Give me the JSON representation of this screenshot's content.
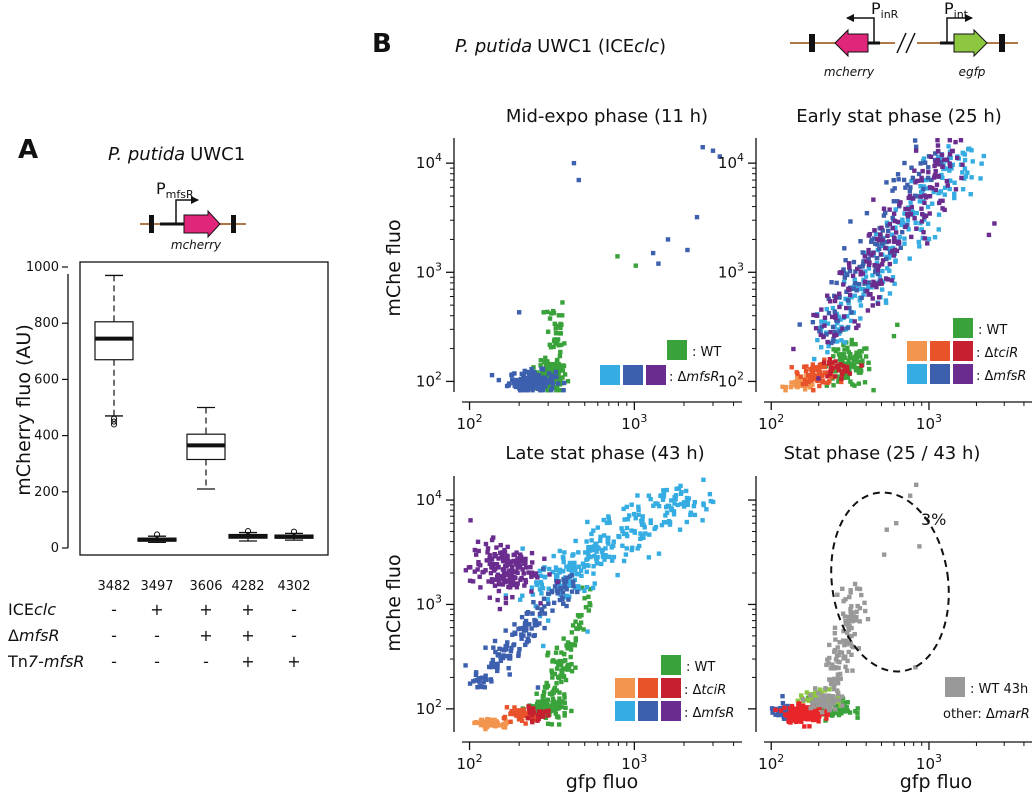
{
  "panel_a": {
    "letter": "A",
    "title_italic": "P. putida",
    "title_rest": "UWC1",
    "promoter_base": "P",
    "promoter_sub": "mfsR",
    "gene": "mcherry",
    "ylabel": "mCherry fluo (AU)",
    "strain_row_labels": [
      {
        "name": "ICE",
        "italic": "clc"
      },
      {
        "name": "Δ",
        "italic": "mfsR"
      },
      {
        "name": "Tn",
        "italic": "7-mfsR"
      }
    ],
    "strains": [
      {
        "id": "3482",
        "ice": "-",
        "dmfsR": "-",
        "tn7": "-"
      },
      {
        "id": "3497",
        "ice": "+",
        "dmfsR": "-",
        "tn7": "-"
      },
      {
        "id": "3606",
        "ice": "+",
        "dmfsR": "+",
        "tn7": "-"
      },
      {
        "id": "4282",
        "ice": "+",
        "dmfsR": "+",
        "tn7": "+"
      },
      {
        "id": "4302",
        "ice": "-",
        "dmfsR": "-",
        "tn7": "+"
      }
    ]
  },
  "panel_b": {
    "letter": "B",
    "title_italic": "P. putida",
    "title_rest": "UWC1 (ICE",
    "title_italic2": "clc",
    "title_close": ")",
    "promoter1_base": "P",
    "promoter1_sub": "inR",
    "promoter2_base": "P",
    "promoter2_sub": "int",
    "gene1": "mcherry",
    "gene2": "egfp",
    "ylabel": "mChe fluo",
    "xlabel": "gfp fluo",
    "legend_wt": ": WT",
    "legend_tcir_prefix": ": Δ",
    "legend_tcir_italic": "tciR",
    "legend_mfsr_prefix": ": Δ",
    "legend_mfsr_italic": "mfsR",
    "legend_wt43": ": WT 43h",
    "legend_other_prefix": "other: Δ",
    "legend_other_italic": "marR",
    "gate_percent": "3%"
  },
  "colors": {
    "wt": "#3aa23a",
    "tcir": [
      "#f2954e",
      "#e8532a",
      "#c62030"
    ],
    "mfsr": [
      "#35ace2",
      "#3c5fae",
      "#6a2d8f"
    ],
    "wt43": "#999999",
    "promoter_gene": "#e0267a",
    "egfp_gene": "#8dc63f",
    "dna": "#b07848"
  },
  "chart_data": [
    {
      "type": "box",
      "title": "P. putida UWC1",
      "ylabel": "mCherry fluo (AU)",
      "ylim": [
        0,
        1000
      ],
      "yticks": [
        0,
        200,
        400,
        600,
        800,
        1000
      ],
      "categories": [
        "3482",
        "3497",
        "3606",
        "4282",
        "4302"
      ],
      "boxes": [
        {
          "whisker_low": 470,
          "q1": 670,
          "median": 745,
          "q3": 805,
          "whisker_high": 970,
          "outliers": [
            440,
            450,
            460
          ]
        },
        {
          "whisker_low": 20,
          "q1": 25,
          "median": 30,
          "q3": 35,
          "whisker_high": 42,
          "outliers": [
            48
          ]
        },
        {
          "whisker_low": 210,
          "q1": 315,
          "median": 365,
          "q3": 405,
          "whisker_high": 500,
          "outliers": []
        },
        {
          "whisker_low": 25,
          "q1": 35,
          "median": 42,
          "q3": 48,
          "whisker_high": 55,
          "outliers": [
            60
          ]
        },
        {
          "whisker_low": 28,
          "q1": 35,
          "median": 40,
          "q3": 46,
          "whisker_high": 52,
          "outliers": [
            58
          ]
        }
      ]
    },
    {
      "type": "scatter",
      "title": "Mid-expo phase (11 h)",
      "xscale": "log",
      "yscale": "log",
      "xlim": [
        90,
        4500
      ],
      "ylim": [
        80,
        17000
      ],
      "xticks": [
        "10^2",
        "10^3"
      ],
      "yticks": [
        "10^2",
        "10^3",
        "10^4"
      ],
      "series": [
        {
          "name": "WT",
          "color": "#3aa23a",
          "clusters": [
            {
              "x": 310,
              "y": 110,
              "sx": 0.05,
              "sy": 0.07,
              "n": 110
            },
            {
              "x": 330,
              "y": 250,
              "sx": 0.03,
              "sy": 0.22,
              "n": 45
            }
          ],
          "points": [
            [
              790,
              1400
            ],
            [
              1020,
              1150
            ]
          ]
        },
        {
          "name": "ΔmfsR",
          "color": "#3c5fae",
          "clusters": [
            {
              "x": 240,
              "y": 100,
              "sx": 0.07,
              "sy": 0.05,
              "n": 150
            }
          ],
          "points": [
            [
              200,
              430
            ],
            [
              430,
              10000
            ],
            [
              460,
              7000
            ],
            [
              1300,
              1500
            ],
            [
              1600,
              2000
            ],
            [
              2100,
              1600
            ],
            [
              2400,
              3200
            ],
            [
              2600,
              14000
            ],
            [
              3000,
              13000
            ],
            [
              3300,
              11500
            ],
            [
              1400,
              1200
            ]
          ]
        }
      ]
    },
    {
      "type": "scatter",
      "title": "Early stat phase (25 h)",
      "xscale": "log",
      "yscale": "log",
      "xlim": [
        90,
        4500
      ],
      "ylim": [
        80,
        17000
      ],
      "xticks": [
        "10^2",
        "10^3"
      ],
      "yticks": [
        "10^2",
        "10^3",
        "10^4"
      ],
      "series": [
        {
          "name": "WT",
          "color": "#3aa23a",
          "clusters": [
            {
              "x": 310,
              "y": 140,
              "sx": 0.07,
              "sy": 0.1,
              "n": 110
            }
          ],
          "points": [
            [
              600,
              260
            ],
            [
              630,
              330
            ]
          ]
        },
        {
          "name": "ΔtciR (1)",
          "color": "#f2954e",
          "clusters": [
            {
              "x": 160,
              "y": 95,
              "sx": 0.05,
              "sy": 0.03,
              "n": 45
            }
          ],
          "points": []
        },
        {
          "name": "ΔtciR (2)",
          "color": "#e8532a",
          "clusters": [
            {
              "x": 200,
              "y": 120,
              "sx": 0.06,
              "sy": 0.05,
              "n": 75
            }
          ],
          "points": []
        },
        {
          "name": "ΔtciR (3)",
          "color": "#c62030",
          "clusters": [
            {
              "x": 260,
              "y": 130,
              "sx": 0.05,
              "sy": 0.04,
              "n": 30
            }
          ],
          "points": []
        },
        {
          "name": "ΔmfsR (1)",
          "color": "#35ace2",
          "trend": {
            "x0": 210,
            "y0": 210,
            "x1": 1600,
            "y1": 13000,
            "sx": 0.08,
            "sy": 0.1,
            "n": 210
          },
          "points": []
        },
        {
          "name": "ΔmfsR (2)",
          "color": "#3c5fae",
          "trend": {
            "x0": 200,
            "y0": 250,
            "x1": 1000,
            "y1": 12000,
            "sx": 0.07,
            "sy": 0.11,
            "n": 120
          },
          "points": []
        },
        {
          "name": "ΔmfsR (3)",
          "color": "#6a2d8f",
          "trend": {
            "x0": 230,
            "y0": 260,
            "x1": 1400,
            "y1": 14000,
            "sx": 0.09,
            "sy": 0.11,
            "n": 190
          },
          "points": [
            [
              2400,
              2200
            ],
            [
              2600,
              2800
            ]
          ]
        }
      ]
    },
    {
      "type": "scatter",
      "title": "Late stat phase (43 h)",
      "xscale": "log",
      "yscale": "log",
      "xlim": [
        90,
        4500
      ],
      "ylim": [
        60,
        17000
      ],
      "xticks": [
        "10^2",
        "10^3"
      ],
      "yticks": [
        "10^2",
        "10^3",
        "10^4"
      ],
      "series": [
        {
          "name": "WT",
          "color": "#3aa23a",
          "clusters": [
            {
              "x": 300,
              "y": 100,
              "sx": 0.06,
              "sy": 0.06,
              "n": 100
            }
          ],
          "trend": {
            "x0": 300,
            "y0": 120,
            "x1": 520,
            "y1": 1000,
            "sx": 0.03,
            "sy": 0.08,
            "n": 90
          },
          "points": [
            [
              540,
              1400
            ]
          ]
        },
        {
          "name": "ΔtciR (1)",
          "color": "#f2954e",
          "clusters": [
            {
              "x": 140,
              "y": 72,
              "sx": 0.05,
              "sy": 0.02,
              "n": 55
            }
          ],
          "points": []
        },
        {
          "name": "ΔtciR (2)",
          "color": "#e8532a",
          "clusters": [
            {
              "x": 200,
              "y": 85,
              "sx": 0.05,
              "sy": 0.03,
              "n": 55
            }
          ],
          "points": []
        },
        {
          "name": "ΔtciR (3)",
          "color": "#c62030",
          "clusters": [
            {
              "x": 250,
              "y": 88,
              "sx": 0.04,
              "sy": 0.03,
              "n": 25
            }
          ],
          "points": []
        },
        {
          "name": "ΔmfsR (1)",
          "color": "#35ace2",
          "trend": {
            "x0": 250,
            "y0": 1200,
            "x1": 2300,
            "y1": 13000,
            "sx": 0.09,
            "sy": 0.1,
            "n": 280
          },
          "points": [
            [
              300,
              700
            ],
            [
              520,
              550
            ],
            [
              280,
              400
            ]
          ]
        },
        {
          "name": "ΔmfsR (2)",
          "color": "#3c5fae",
          "trend": {
            "x0": 110,
            "y0": 180,
            "x1": 420,
            "y1": 1700,
            "sx": 0.04,
            "sy": 0.07,
            "n": 150
          },
          "points": [
            [
              260,
              160
            ],
            [
              280,
              2200
            ]
          ]
        },
        {
          "name": "ΔmfsR (3)",
          "color": "#6a2d8f",
          "clusters": [
            {
              "x": 160,
              "y": 2200,
              "sx": 0.1,
              "sy": 0.13,
              "n": 170
            }
          ],
          "points": []
        }
      ]
    },
    {
      "type": "scatter",
      "title": "Stat phase (25 / 43 h)",
      "xscale": "log",
      "yscale": "log",
      "xlim": [
        90,
        4500
      ],
      "ylim": [
        60,
        17000
      ],
      "xticks": [
        "10^2",
        "10^3"
      ],
      "yticks": [],
      "annotation": "3% (dashed gate)",
      "series": [
        {
          "name": "ΔmarR (1)",
          "color": "#3c5fae",
          "clusters": [
            {
              "x": 115,
              "y": 95,
              "sx": 0.03,
              "sy": 0.04,
              "n": 30
            }
          ],
          "points": []
        },
        {
          "name": "ΔmarR (2)",
          "color": "#3aa23a",
          "clusters": [
            {
              "x": 240,
              "y": 100,
              "sx": 0.07,
              "sy": 0.05,
              "n": 80
            }
          ],
          "points": []
        },
        {
          "name": "ΔmarR (3)",
          "color": "#8dc63f",
          "clusters": [
            {
              "x": 210,
              "y": 125,
              "sx": 0.07,
              "sy": 0.04,
              "n": 60
            }
          ],
          "points": []
        },
        {
          "name": "ΔmarR (4)",
          "color": "#e8262a",
          "clusters": [
            {
              "x": 160,
              "y": 90,
              "sx": 0.06,
              "sy": 0.04,
              "n": 160
            }
          ],
          "points": []
        },
        {
          "name": "WT 43h",
          "color": "#999999",
          "clusters": [
            {
              "x": 210,
              "y": 115,
              "sx": 0.05,
              "sy": 0.05,
              "n": 40
            }
          ],
          "trend": {
            "x0": 240,
            "y0": 140,
            "x1": 340,
            "y1": 1200,
            "sx": 0.04,
            "sy": 0.1,
            "n": 120
          },
          "points": [
            [
              830,
              14000
            ],
            [
              760,
              11000
            ],
            [
              620,
              6000
            ],
            [
              870,
              3600
            ],
            [
              520,
              3000
            ],
            [
              540,
              5200
            ],
            [
              820,
              250
            ]
          ]
        }
      ]
    }
  ]
}
